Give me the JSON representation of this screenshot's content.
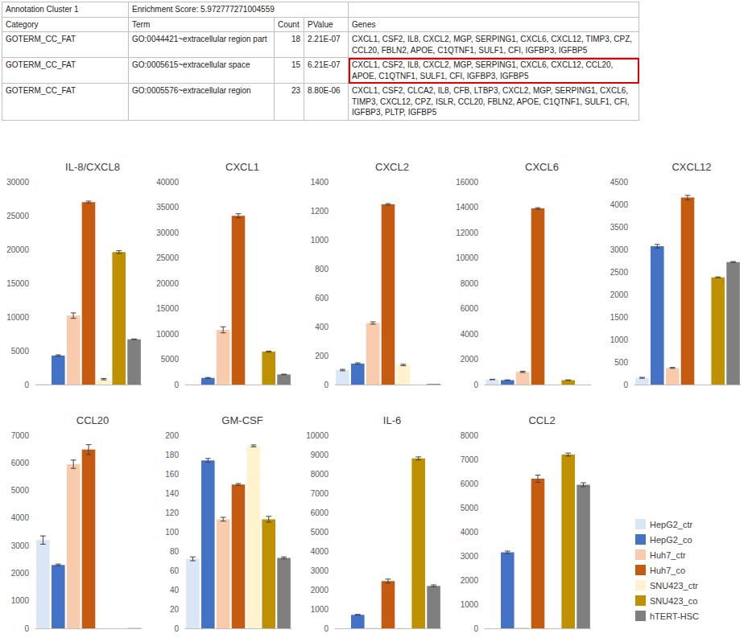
{
  "table": {
    "cluster": "Annotation Cluster 1",
    "enrichment": "Enrichment Score: 5.972777271004559",
    "header": [
      "Category",
      "Term",
      "Count",
      "PValue",
      "Genes"
    ],
    "rows": [
      {
        "cells": [
          "GOTERM_CC_FAT",
          "GO:0044421~extracellular region part",
          18,
          "2.21E-07",
          "CXCL1, CSF2, IL8, CXCL2, MGP, SERPING1, CXCL6, CXCL12, TIMP3, CPZ, CCL20, FBLN2, APOE, C1QTNF1, SULF1, CFI, IGFBP3, IGFBP5"
        ],
        "highlight": false
      },
      {
        "cells": [
          "GOTERM_CC_FAT",
          "GO:0005615~extracellular space",
          15,
          "6.21E-07",
          "CXCL1, CSF2, IL8, CXCL2, MGP, SERPING1, CXCL6, CXCL12, CCL20, APOE, C1QTNF1, SULF1, CFI, IGFBP3, IGFBP5"
        ],
        "highlight": true
      },
      {
        "cells": [
          "GOTERM_CC_FAT",
          "GO:0005576~extracellular region",
          23,
          "8.80E-06",
          "CXCL1, CSF2, CLCA2, IL8, CFB, LTBP3, CXCL2, MGP, SERPING1, CXCL6, TIMP3, CXCL12, CPZ, ISLR, CCL20, FBLN2, APOE, C1QTNF1, SULF1, CFI, IGFBP3, PLTP, IGFBP5"
        ],
        "highlight": false
      }
    ]
  },
  "chart_data": [
    {
      "type": "bar",
      "title": "IL-8/CXCL8",
      "categories": [
        "HepG2_ctr",
        "HepG2_co",
        "Huh7_ctr",
        "Huh7_co",
        "SNU423_ctr",
        "SNU423_co",
        "hTERT-HSC"
      ],
      "colors": [
        "#dae6f5",
        "#4472c4",
        "#f8cbad",
        "#c55a11",
        "#fff2cc",
        "#bf9000",
        "#7f7f7f"
      ],
      "values": [
        100,
        4300,
        10200,
        27000,
        800,
        19600,
        6700
      ],
      "errors": [
        0,
        100,
        400,
        150,
        100,
        200,
        50
      ],
      "ylim": [
        0,
        30000
      ],
      "yticks": [
        0,
        5000,
        10000,
        15000,
        20000,
        25000,
        30000
      ],
      "grid": false,
      "tick_labels": "y"
    },
    {
      "type": "bar",
      "title": "CXCL1",
      "categories": [
        "HepG2_ctr",
        "HepG2_co",
        "Huh7_ctr",
        "Huh7_co",
        "SNU423_ctr",
        "SNU423_co",
        "hTERT-HSC"
      ],
      "colors": [
        "#dae6f5",
        "#4472c4",
        "#f8cbad",
        "#c55a11",
        "#fff2cc",
        "#bf9000",
        "#7f7f7f"
      ],
      "values": [
        50,
        1300,
        10800,
        33300,
        50,
        6500,
        2000
      ],
      "errors": [
        0,
        100,
        600,
        400,
        0,
        100,
        50
      ],
      "ylim": [
        0,
        40000
      ],
      "yticks": [
        0,
        5000,
        10000,
        15000,
        20000,
        25000,
        30000,
        35000,
        40000
      ],
      "grid": false,
      "tick_labels": "y"
    },
    {
      "type": "bar",
      "title": "CXCL2",
      "categories": [
        "HepG2_ctr",
        "HepG2_co",
        "Huh7_ctr",
        "Huh7_co",
        "SNU423_ctr",
        "SNU423_co",
        "hTERT-HSC"
      ],
      "colors": [
        "#dae6f5",
        "#4472c4",
        "#f8cbad",
        "#c55a11",
        "#fff2cc",
        "#bf9000",
        "#7f7f7f"
      ],
      "values": [
        100,
        145,
        425,
        1245,
        135,
        0,
        5
      ],
      "errors": [
        5,
        5,
        8,
        5,
        5,
        0,
        0
      ],
      "ylim": [
        0,
        1400
      ],
      "yticks": [
        0,
        200,
        400,
        600,
        800,
        1000,
        1200,
        1400
      ],
      "grid": false,
      "tick_labels": "y"
    },
    {
      "type": "bar",
      "title": "CXCL6",
      "categories": [
        "HepG2_ctr",
        "HepG2_co",
        "Huh7_ctr",
        "Huh7_co",
        "SNU423_ctr",
        "SNU423_co",
        "hTERT-HSC"
      ],
      "colors": [
        "#dae6f5",
        "#4472c4",
        "#f8cbad",
        "#c55a11",
        "#fff2cc",
        "#bf9000",
        "#7f7f7f"
      ],
      "values": [
        400,
        350,
        1000,
        13900,
        20,
        350,
        0
      ],
      "errors": [
        20,
        20,
        50,
        60,
        0,
        20,
        0
      ],
      "ylim": [
        0,
        16000
      ],
      "yticks": [
        0,
        2000,
        4000,
        6000,
        8000,
        10000,
        12000,
        14000,
        16000
      ],
      "grid": false,
      "tick_labels": "y"
    },
    {
      "type": "bar",
      "title": "CXCL12",
      "categories": [
        "HepG2_ctr",
        "HepG2_co",
        "Huh7_ctr",
        "Huh7_co",
        "SNU423_ctr",
        "SNU423_co",
        "hTERT-HSC"
      ],
      "colors": [
        "#dae6f5",
        "#4472c4",
        "#f8cbad",
        "#c55a11",
        "#fff2cc",
        "#bf9000",
        "#7f7f7f"
      ],
      "values": [
        150,
        3070,
        370,
        4150,
        0,
        2380,
        2720
      ],
      "errors": [
        10,
        40,
        10,
        50,
        0,
        10,
        10
      ],
      "ylim": [
        0,
        4500
      ],
      "yticks": [
        0,
        500,
        1000,
        1500,
        2000,
        2500,
        3000,
        3500,
        4000,
        4500
      ],
      "grid": false,
      "tick_labels": "y"
    },
    {
      "type": "bar",
      "title": "CCL20",
      "categories": [
        "HepG2_ctr",
        "HepG2_co",
        "Huh7_ctr",
        "Huh7_co",
        "SNU423_ctr",
        "SNU423_co",
        "hTERT-HSC"
      ],
      "colors": [
        "#dae6f5",
        "#4472c4",
        "#f8cbad",
        "#c55a11",
        "#fff2cc",
        "#bf9000",
        "#7f7f7f"
      ],
      "values": [
        3200,
        2300,
        5950,
        6480,
        0,
        0,
        10
      ],
      "errors": [
        150,
        30,
        150,
        180,
        0,
        0,
        0
      ],
      "ylim": [
        0,
        7000
      ],
      "yticks": [
        0,
        1000,
        2000,
        3000,
        4000,
        5000,
        6000,
        7000
      ],
      "grid": false,
      "tick_labels": "y"
    },
    {
      "type": "bar",
      "title": "GM-CSF",
      "categories": [
        "HepG2_ctr",
        "HepG2_co",
        "Huh7_ctr",
        "Huh7_co",
        "SNU423_ctr",
        "SNU423_co",
        "hTERT-HSC"
      ],
      "colors": [
        "#dae6f5",
        "#4472c4",
        "#f8cbad",
        "#c55a11",
        "#fff2cc",
        "#bf9000",
        "#7f7f7f"
      ],
      "values": [
        72,
        174,
        113,
        149,
        189,
        113,
        73
      ],
      "errors": [
        2,
        2,
        2,
        1,
        1,
        3,
        1
      ],
      "ylim": [
        0,
        200
      ],
      "yticks": [
        0,
        20,
        40,
        60,
        80,
        100,
        120,
        140,
        160,
        180,
        200
      ],
      "grid": false,
      "tick_labels": "y"
    },
    {
      "type": "bar",
      "title": "IL-6",
      "categories": [
        "HepG2_ctr",
        "HepG2_co",
        "Huh7_ctr",
        "Huh7_co",
        "SNU423_ctr",
        "SNU423_co",
        "hTERT-HSC"
      ],
      "colors": [
        "#dae6f5",
        "#4472c4",
        "#f8cbad",
        "#c55a11",
        "#fff2cc",
        "#bf9000",
        "#7f7f7f"
      ],
      "values": [
        10,
        700,
        20,
        2450,
        50,
        8800,
        2200
      ],
      "errors": [
        0,
        20,
        0,
        100,
        0,
        80,
        50
      ],
      "ylim": [
        0,
        10000
      ],
      "yticks": [
        0,
        1000,
        2000,
        3000,
        4000,
        5000,
        6000,
        7000,
        8000,
        9000,
        10000
      ],
      "grid": false,
      "tick_labels": "y"
    },
    {
      "type": "bar",
      "title": "CCL2",
      "categories": [
        "HepG2_ctr",
        "HepG2_co",
        "Huh7_ctr",
        "Huh7_co",
        "SNU423_ctr",
        "SNU423_co",
        "hTERT-HSC"
      ],
      "colors": [
        "#dae6f5",
        "#4472c4",
        "#f8cbad",
        "#c55a11",
        "#fff2cc",
        "#bf9000",
        "#7f7f7f"
      ],
      "values": [
        0,
        3150,
        30,
        6200,
        20,
        7200,
        5950
      ],
      "errors": [
        0,
        50,
        0,
        150,
        0,
        60,
        80
      ],
      "ylim": [
        0,
        8000
      ],
      "yticks": [
        0,
        1000,
        2000,
        3000,
        4000,
        5000,
        6000,
        7000,
        8000
      ],
      "grid": false,
      "tick_labels": "y",
      "legend": "right"
    }
  ]
}
